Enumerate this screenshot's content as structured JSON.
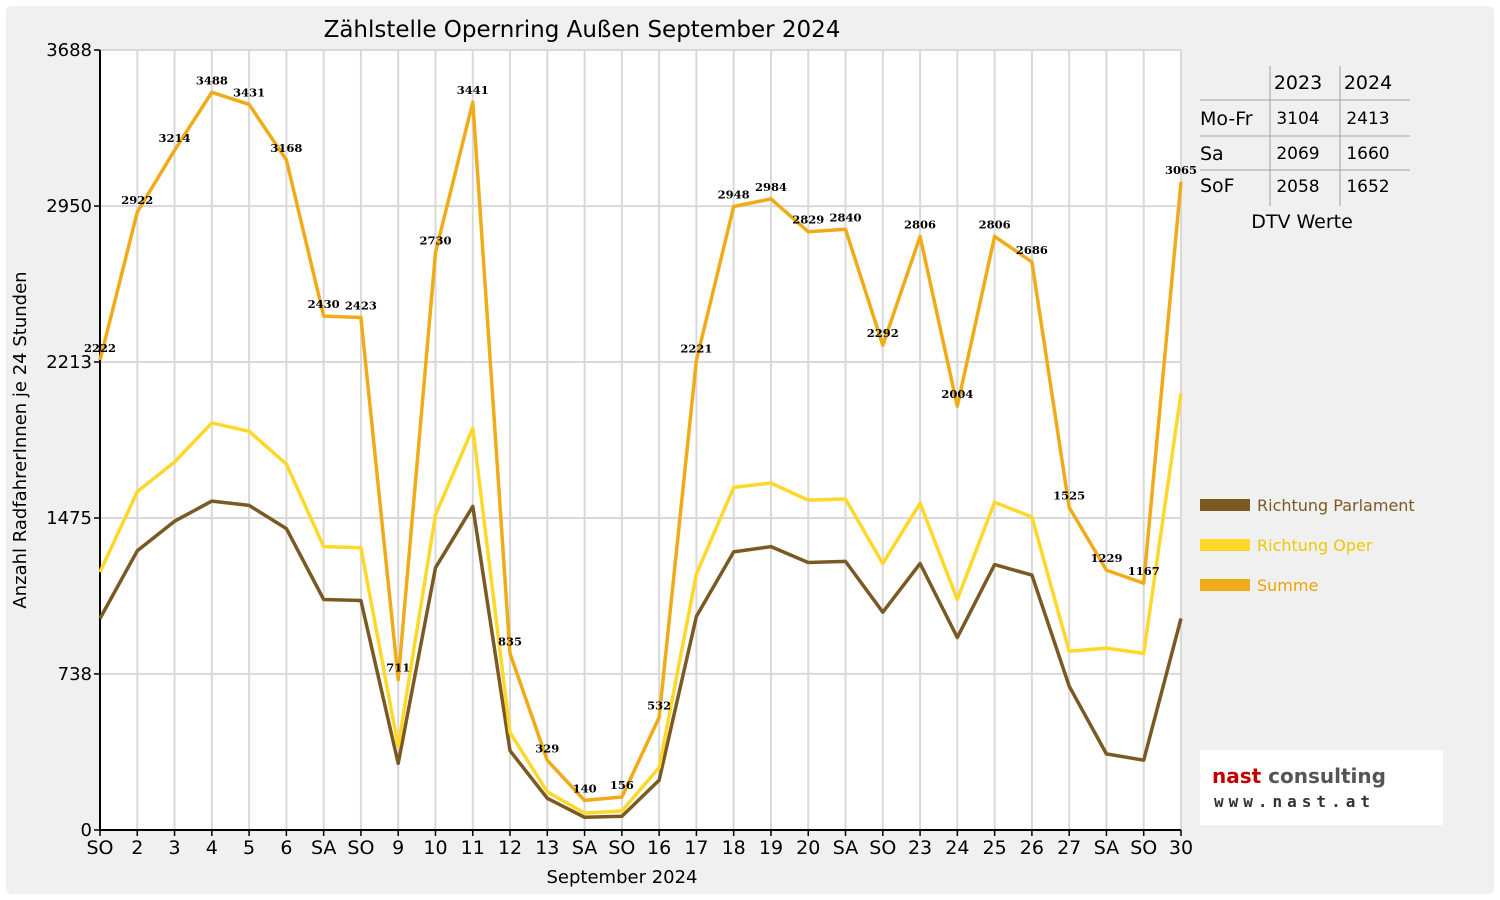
{
  "chart_data": {
    "type": "line",
    "title": "Zählstelle Opernring Außen September 2024",
    "xlabel": "September 2024",
    "ylabel": "Anzahl RadfahrerInnen je 24 Stunden",
    "ylim": [
      0,
      3688
    ],
    "yticks": [
      0,
      738,
      1475,
      2213,
      2950,
      3688
    ],
    "categories": [
      "SO",
      "2",
      "3",
      "4",
      "5",
      "6",
      "SA",
      "SO",
      "9",
      "10",
      "11",
      "12",
      "13",
      "SA",
      "SO",
      "16",
      "17",
      "18",
      "19",
      "20",
      "SA",
      "SO",
      "23",
      "24",
      "25",
      "26",
      "27",
      "SA",
      "SO",
      "30"
    ],
    "weekend_color": "#e00000",
    "weekend_categories": [
      "SO"
    ],
    "grid": true,
    "legend_position": "right",
    "series": [
      {
        "name": "Richtung Parlament",
        "color": "#7a5a22",
        "values": [
          1000,
          1320,
          1460,
          1555,
          1535,
          1425,
          1090,
          1085,
          315,
          1240,
          1530,
          375,
          150,
          60,
          65,
          235,
          1010,
          1315,
          1340,
          1265,
          1270,
          1030,
          1260,
          910,
          1255,
          1205,
          680,
          360,
          330,
          1000
        ]
      },
      {
        "name": "Richtung Oper",
        "color": "#ffd829",
        "values": [
          1220,
          1600,
          1740,
          1925,
          1885,
          1730,
          1340,
          1335,
          395,
          1490,
          1900,
          460,
          180,
          80,
          90,
          295,
          1210,
          1620,
          1640,
          1560,
          1565,
          1260,
          1545,
          1090,
          1550,
          1480,
          845,
          860,
          835,
          2065
        ]
      },
      {
        "name": "Summe",
        "color": "#f0ab18",
        "values": [
          2222,
          2922,
          3214,
          3488,
          3431,
          3168,
          2430,
          2423,
          711,
          2730,
          3441,
          835,
          329,
          140,
          156,
          532,
          2221,
          2948,
          2984,
          2829,
          2840,
          2292,
          2806,
          2004,
          2806,
          2686,
          1525,
          1229,
          1167,
          3065
        ],
        "labels": [
          "2222",
          "2922",
          "3214",
          "3488",
          "3431",
          "3168",
          "2430",
          "2423",
          "711",
          "2730",
          "3441",
          "835",
          "329",
          "140",
          "156",
          "532",
          "2221",
          "2948",
          "2984",
          "2829",
          "2840",
          "2292",
          "2806",
          "2004",
          "2806",
          "2686",
          "1525",
          "1229",
          "1167",
          "3065"
        ]
      }
    ]
  },
  "dtv_table": {
    "columns": [
      "2023",
      "2024"
    ],
    "rows": [
      {
        "label": "Mo-Fr",
        "v2023": "3104",
        "v2024": "2413"
      },
      {
        "label": "Sa",
        "v2023": "2069",
        "v2024": "1660"
      },
      {
        "label": "SoF",
        "v2023": "2058",
        "v2024": "1652"
      }
    ],
    "caption": "DTV Werte"
  },
  "logo": {
    "name_part1": "nast",
    "name_part2": " consulting",
    "url": "www.nast.at"
  }
}
